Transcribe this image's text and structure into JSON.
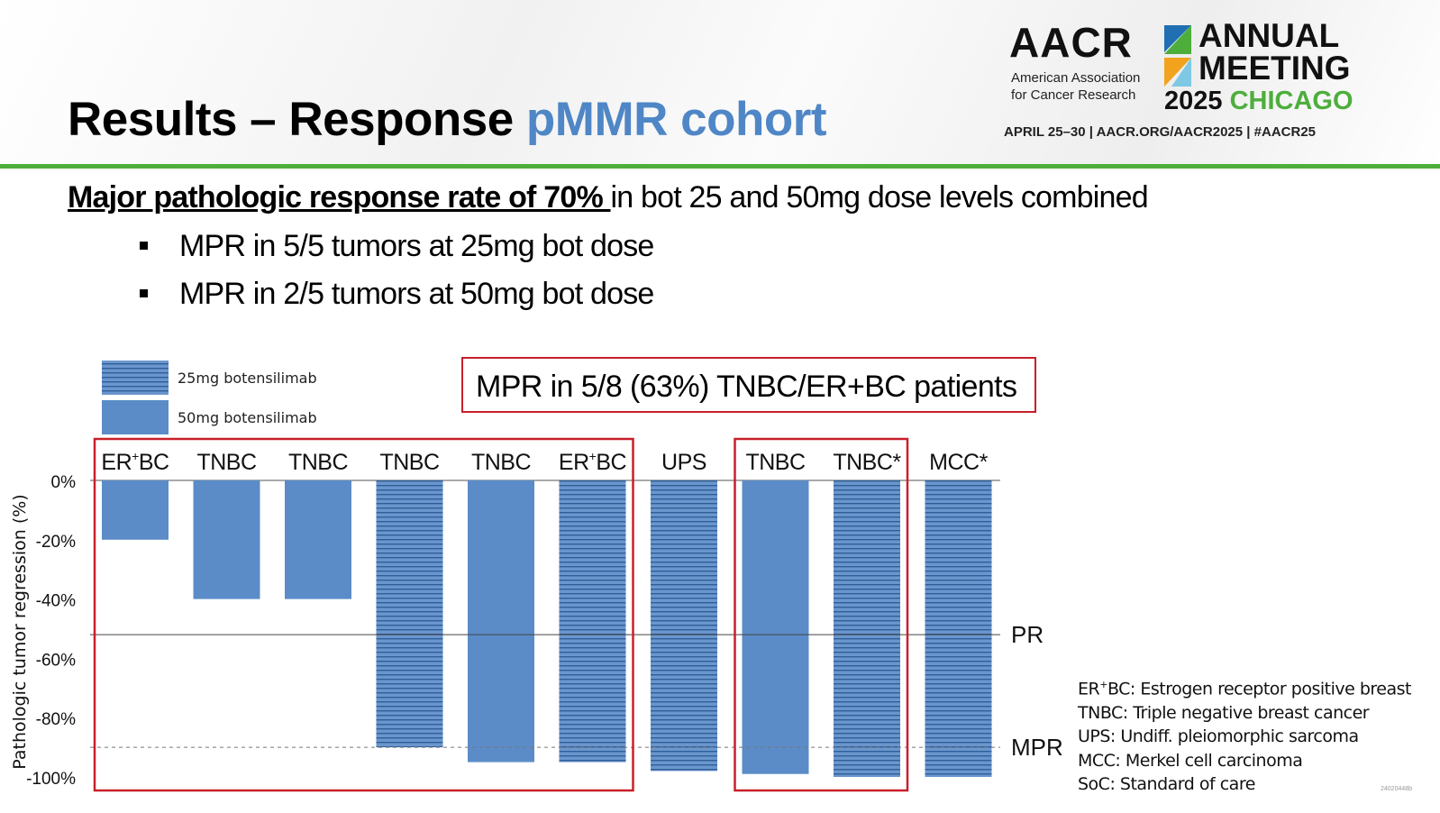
{
  "title": {
    "main": "Results – Response",
    "accent": "pMMR cohort"
  },
  "logo": {
    "brand": "AACR",
    "org_line1": "American Association",
    "org_line2": "for Cancer Research",
    "event_line1": "ANNUAL",
    "event_line2": "MEETING",
    "year": "2025",
    "city": "CHICAGO",
    "dates": "APRIL 25–30  |  AACR.ORG/AACR2025  |  #AACR25"
  },
  "headline": {
    "emphasis": "Major pathologic response rate of 70% ",
    "rest": "in bot 25 and 50mg dose levels combined"
  },
  "bullets": [
    "MPR in 5/5 tumors at 25mg bot dose",
    "MPR in 2/5 tumors at 50mg bot dose"
  ],
  "callout": "MPR in 5/8 (63%) TNBC/ER+BC patients",
  "abbreviations": [
    {
      "abbr": "ER+BC:",
      "text": "Estrogen receptor positive breast"
    },
    {
      "abbr": "TNBC:",
      "text": "Triple negative breast cancer"
    },
    {
      "abbr": "UPS:",
      "text": "Undiff. pleiomorphic sarcoma"
    },
    {
      "abbr": "MCC:",
      "text": "Merkel cell carcinoma"
    },
    {
      "abbr": "SoC:",
      "text": "Standard of care"
    }
  ],
  "watermark": "24020448b",
  "colors": {
    "bar": "#5b8cc8",
    "hatch_line": "#2f5f9a",
    "highlight_box": "#c8202a",
    "accent": "#4f86c6",
    "rule": "#4dae3c"
  },
  "chart_data": {
    "type": "bar",
    "ylabel": "Pathologic tumor regression (%)",
    "ylim": [
      -100,
      0
    ],
    "yticks": [
      0,
      -20,
      -40,
      -60,
      -80,
      -100
    ],
    "ytick_labels": [
      "0%",
      "-20%",
      "-40%",
      "-60%",
      "-80%",
      "-100%"
    ],
    "categories": [
      "ER+BC",
      "TNBC",
      "TNBC",
      "TNBC",
      "TNBC",
      "ER+BC",
      "UPS",
      "TNBC",
      "TNBC*",
      "MCC*"
    ],
    "values": [
      -20,
      -40,
      -40,
      -90,
      -95,
      -95,
      -98,
      -99,
      -100,
      -100
    ],
    "dose": [
      "50mg",
      "50mg",
      "50mg",
      "25mg",
      "50mg",
      "25mg",
      "25mg",
      "50mg",
      "25mg",
      "25mg"
    ],
    "legend": [
      {
        "name": "25mg botensilimab",
        "style": "hatched"
      },
      {
        "name": "50mg botensilimab",
        "style": "solid"
      }
    ],
    "legend_position": "top-left",
    "reference_lines": [
      {
        "label": "PR",
        "value": -52,
        "style": "solid"
      },
      {
        "label": "MPR",
        "value": -90,
        "style": "dashed"
      }
    ],
    "highlight_groups": [
      [
        0,
        5
      ],
      [
        7,
        8
      ]
    ]
  }
}
